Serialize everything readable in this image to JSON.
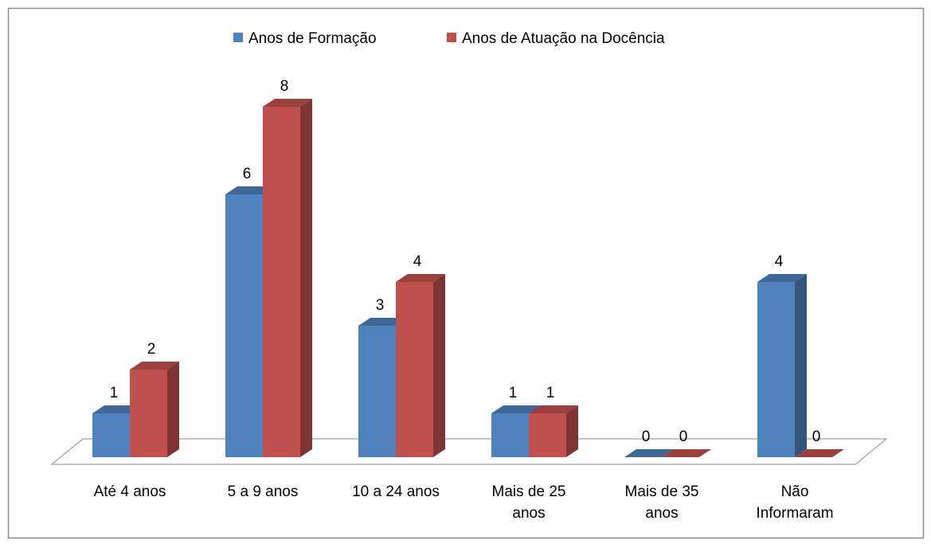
{
  "chart_data": {
    "type": "bar3d",
    "categories": [
      "Até 4 anos",
      "5 a 9 anos",
      "10 a 24 anos",
      "Mais de 25 anos",
      "Mais de 35 anos",
      "Não Informaram"
    ],
    "series": [
      {
        "name": "Anos de Formação",
        "color": "#4f81bd",
        "values": [
          1,
          6,
          3,
          1,
          0,
          4
        ]
      },
      {
        "name": "Anos de Atuação na Docência",
        "color": "#c0504d",
        "values": [
          2,
          8,
          4,
          1,
          0,
          0
        ]
      }
    ],
    "legend": "top"
  }
}
